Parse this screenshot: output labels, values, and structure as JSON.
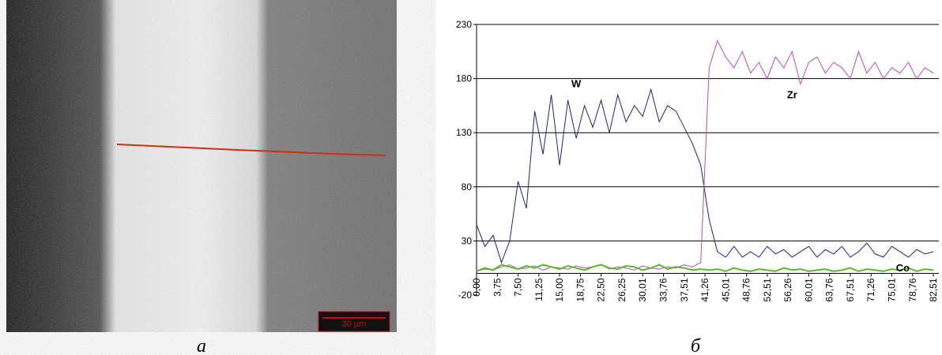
{
  "image": {
    "scale_bar": "30 µm",
    "caption": "а"
  },
  "chart_data": {
    "type": "line",
    "caption": "б",
    "x": [
      0,
      1.5,
      3,
      4.5,
      6,
      7.5,
      9,
      10.5,
      12,
      13.5,
      15,
      16.5,
      18,
      19.5,
      21,
      22.5,
      24,
      25.5,
      27,
      28.5,
      30,
      31.5,
      33,
      34.5,
      36,
      37.5,
      39,
      40.5,
      42,
      43.5,
      45,
      46.5,
      48,
      49.5,
      51,
      52.5,
      54,
      55.5,
      57,
      58.5,
      60,
      61.5,
      63,
      64.5,
      66,
      67.5,
      69,
      70.5,
      72,
      73.5,
      75,
      76.5,
      78,
      79.5,
      81,
      82.5
    ],
    "series": [
      {
        "name": "W",
        "color": "#1f2378",
        "values": [
          45,
          25,
          35,
          10,
          30,
          85,
          60,
          150,
          110,
          165,
          100,
          160,
          125,
          155,
          135,
          160,
          130,
          165,
          140,
          155,
          145,
          170,
          140,
          155,
          150,
          135,
          120,
          100,
          50,
          20,
          15,
          25,
          15,
          20,
          15,
          25,
          18,
          22,
          15,
          20,
          25,
          15,
          22,
          18,
          25,
          15,
          20,
          28,
          18,
          15,
          25,
          20,
          15,
          22,
          18,
          20
        ]
      },
      {
        "name": "Zr",
        "color": "#b34fb0",
        "values": [
          2,
          4,
          3,
          6,
          8,
          4,
          5,
          7,
          3,
          6,
          5,
          4,
          7,
          5,
          6,
          8,
          4,
          6,
          5,
          3,
          7,
          5,
          4,
          6,
          5,
          8,
          6,
          10,
          190,
          215,
          200,
          190,
          205,
          185,
          195,
          180,
          200,
          190,
          205,
          175,
          195,
          200,
          185,
          195,
          190,
          180,
          205,
          185,
          195,
          180,
          190,
          185,
          195,
          180,
          190,
          185
        ]
      },
      {
        "name": "Co",
        "color": "#5cb82e",
        "values": [
          2,
          5,
          3,
          8,
          6,
          4,
          7,
          5,
          8,
          6,
          4,
          7,
          5,
          3,
          6,
          8,
          5,
          4,
          7,
          6,
          3,
          5,
          8,
          4,
          6,
          5,
          3,
          4,
          3,
          4,
          2,
          5,
          3,
          2,
          4,
          3,
          2,
          5,
          3,
          4,
          2,
          3,
          4,
          2,
          3,
          5,
          2,
          4,
          3,
          2,
          4,
          3,
          5,
          2,
          4,
          3
        ]
      }
    ],
    "xlim": [
      0,
      83.5
    ],
    "xticks": [
      {
        "value": 0,
        "label": "0,00"
      },
      {
        "value": 3.75,
        "label": "3,75"
      },
      {
        "value": 7.5,
        "label": "7,50"
      },
      {
        "value": 11.25,
        "label": "11,25"
      },
      {
        "value": 15,
        "label": "15,00"
      },
      {
        "value": 18.75,
        "label": "18,75"
      },
      {
        "value": 22.5,
        "label": "22,50"
      },
      {
        "value": 26.25,
        "label": "26,25"
      },
      {
        "value": 30.01,
        "label": "30,01"
      },
      {
        "value": 33.76,
        "label": "33,76"
      },
      {
        "value": 37.51,
        "label": "37,51"
      },
      {
        "value": 41.26,
        "label": "41,26"
      },
      {
        "value": 45.01,
        "label": "45,01"
      },
      {
        "value": 48.76,
        "label": "48,76"
      },
      {
        "value": 52.51,
        "label": "52,51"
      },
      {
        "value": 56.26,
        "label": "56,26"
      },
      {
        "value": 60.01,
        "label": "60,01"
      },
      {
        "value": 63.76,
        "label": "63,76"
      },
      {
        "value": 67.51,
        "label": "67,51"
      },
      {
        "value": 71.26,
        "label": "71,26"
      },
      {
        "value": 75.01,
        "label": "75,01"
      },
      {
        "value": 78.76,
        "label": "78,76"
      },
      {
        "value": 82.51,
        "label": "82,51"
      }
    ],
    "ylim": [
      -20,
      230
    ],
    "yticks": [
      -20,
      30,
      80,
      130,
      180,
      230
    ],
    "grid": true
  }
}
